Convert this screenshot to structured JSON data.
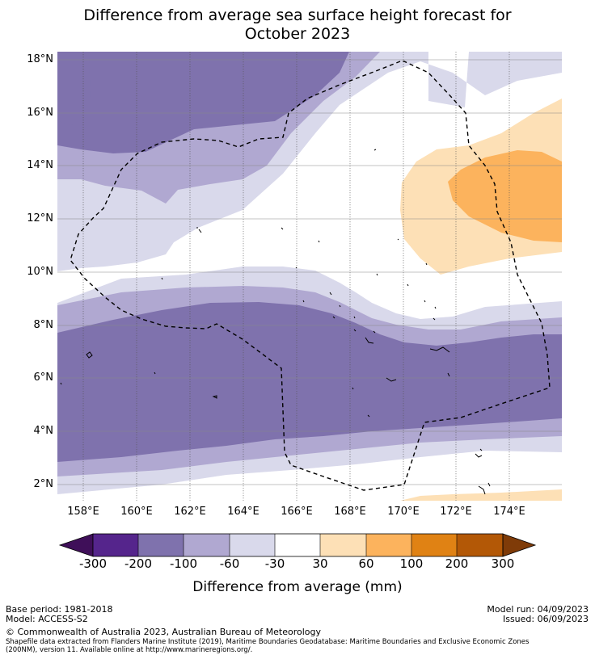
{
  "title_line1": "Difference from average sea surface height forecast for",
  "title_line2": "October 2023",
  "lat_labels": [
    "18°N",
    "16°N",
    "14°N",
    "12°N",
    "10°N",
    "8°N",
    "6°N",
    "4°N",
    "2°N"
  ],
  "lon_labels": [
    "158°E",
    "160°E",
    "162°E",
    "164°E",
    "166°E",
    "168°E",
    "170°E",
    "172°E",
    "174°E"
  ],
  "colorbar": {
    "labels": [
      "-300",
      "-200",
      "-100",
      "-60",
      "-30",
      "30",
      "60",
      "100",
      "200",
      "300"
    ],
    "title": "Difference from average (mm)",
    "colors": {
      "below_min": "#3f0f59",
      "n300_n200": "#55258c",
      "n200_n100": "#7f72ad",
      "n100_n60": "#b0a8d1",
      "n60_n30": "#d9d9eb",
      "n30_30": "#ffffff",
      "p30_60": "#fde0b6",
      "p60_100": "#fcb35d",
      "p100_200": "#e08214",
      "p200_300": "#b35806",
      "above_max": "#7f3b08"
    }
  },
  "footer": {
    "base_period": "Base period: 1981-2018",
    "model": "Model: ACCESS-S2",
    "model_run": "Model run: 04/09/2023",
    "issued": "Issued: 06/09/2023",
    "copyright": "© Commonwealth of Australia 2023, Australian Bureau of Meteorology",
    "shapefile_line1": "Shapefile data extracted from Flanders Marine Institute (2019), Maritime Boundaries Geodatabase: Maritime Boundaries and Exclusive Economic Zones",
    "shapefile_line2": "(200NM), version 11. Available online at http://www.marineregions.org/."
  }
}
